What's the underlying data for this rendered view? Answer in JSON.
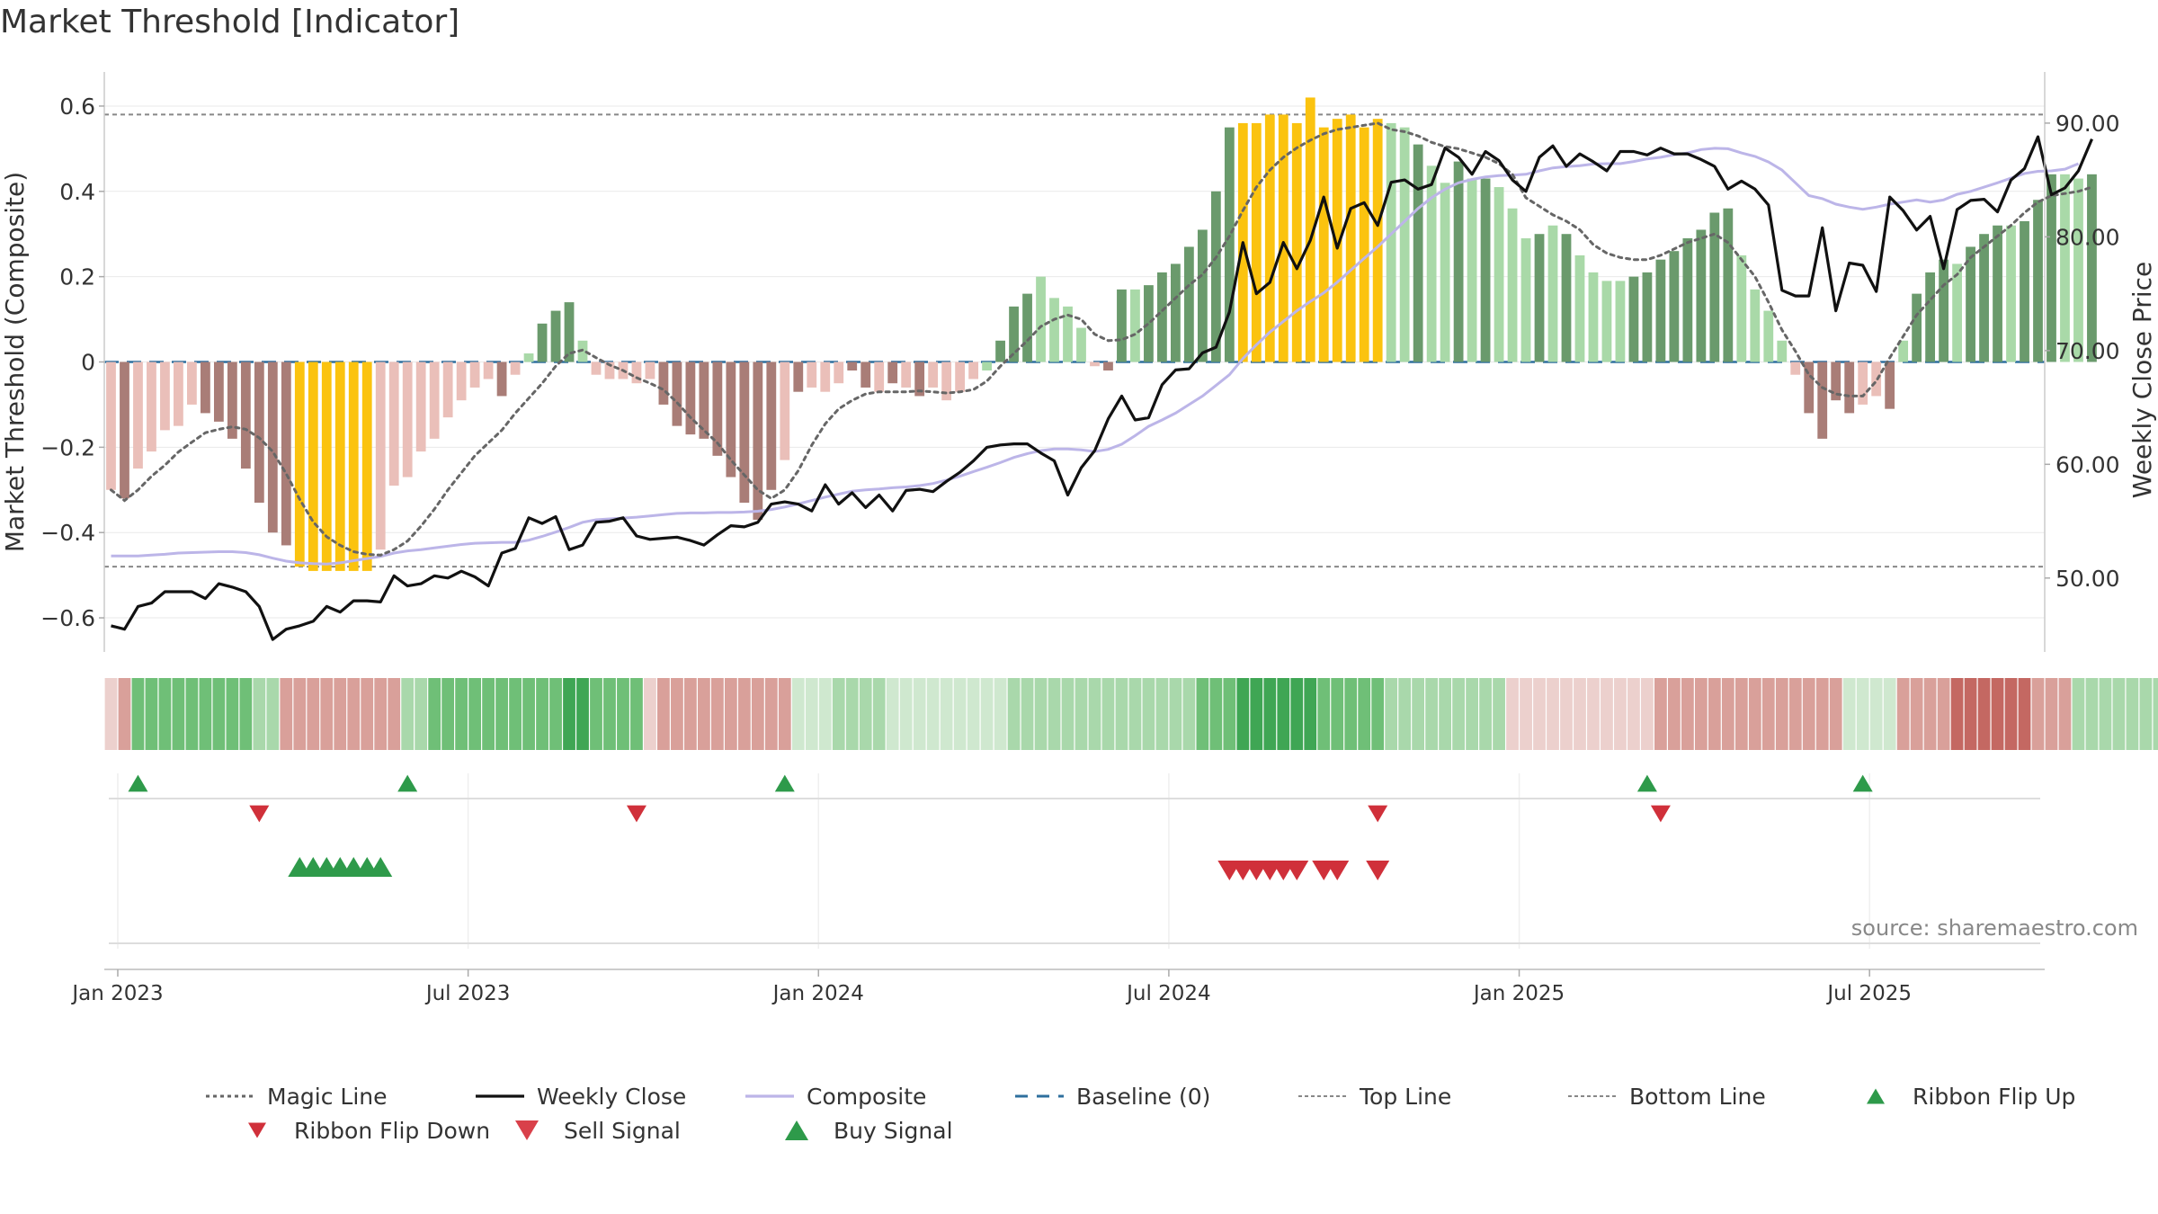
{
  "chart_data": {
    "type": "bar",
    "title": "Market Threshold [Indicator]",
    "ylabel_left": "Market Threshold (Composite)",
    "ylabel_right": "Weekly Close Price",
    "ylim_left": [
      -0.68,
      0.68
    ],
    "ylim_right": [
      43.5,
      94.5
    ],
    "yticks_left": [
      -0.6,
      -0.4,
      -0.2,
      0,
      0.2,
      0.4,
      0.6
    ],
    "yticks_left_labels": [
      "−0.6",
      "−0.4",
      "−0.2",
      "0",
      "0.2",
      "0.4",
      "0.6"
    ],
    "yticks_right": [
      50,
      60,
      70,
      80,
      90
    ],
    "yticks_right_labels": [
      "50.00",
      "60.00",
      "70.00",
      "80.00",
      "90.00"
    ],
    "x_ticks": [
      "Jan 2023",
      "Jul 2023",
      "Jan 2024",
      "Jul 2024",
      "Jan 2025",
      "Jul 2025"
    ],
    "x_tick_weeks": [
      1,
      27,
      53,
      79,
      105,
      131
    ],
    "weeks": 144,
    "top_line": 0.58,
    "bottom_line": -0.48,
    "baseline": 0,
    "composite_bars": [
      -0.3,
      -0.32,
      -0.25,
      -0.21,
      -0.16,
      -0.15,
      -0.1,
      -0.12,
      -0.14,
      -0.18,
      -0.25,
      -0.33,
      -0.4,
      -0.43,
      -0.48,
      -0.49,
      -0.49,
      -0.49,
      -0.49,
      -0.49,
      -0.44,
      -0.29,
      -0.27,
      -0.21,
      -0.18,
      -0.13,
      -0.09,
      -0.06,
      -0.04,
      -0.08,
      -0.03,
      0.02,
      0.09,
      0.12,
      0.14,
      0.05,
      -0.03,
      -0.04,
      -0.04,
      -0.05,
      -0.04,
      -0.1,
      -0.15,
      -0.17,
      -0.18,
      -0.22,
      -0.27,
      -0.33,
      -0.37,
      -0.3,
      -0.23,
      -0.07,
      -0.06,
      -0.07,
      -0.05,
      -0.02,
      -0.06,
      -0.07,
      -0.05,
      -0.06,
      -0.08,
      -0.06,
      -0.09,
      -0.07,
      -0.04,
      -0.02,
      0.05,
      0.13,
      0.16,
      0.2,
      0.15,
      0.13,
      0.08,
      -0.01,
      -0.02,
      0.17,
      0.17,
      0.18,
      0.21,
      0.23,
      0.27,
      0.31,
      0.4,
      0.55,
      0.56,
      0.56,
      0.58,
      0.58,
      0.56,
      0.62,
      0.55,
      0.57,
      0.58,
      0.55,
      0.57,
      0.56,
      0.55,
      0.51,
      0.46,
      0.42,
      0.47,
      0.43,
      0.43,
      0.41,
      0.36,
      0.29,
      0.3,
      0.32,
      0.3,
      0.25,
      0.21,
      0.19,
      0.19,
      0.2,
      0.21,
      0.24,
      0.26,
      0.29,
      0.31,
      0.35,
      0.36,
      0.25,
      0.17,
      0.12,
      0.05,
      -0.03,
      -0.12,
      -0.18,
      -0.09,
      -0.12,
      -0.1,
      -0.08,
      -0.11,
      0.05,
      0.16,
      0.21,
      0.24,
      0.23,
      0.27,
      0.3,
      0.32,
      0.32,
      0.33,
      0.38,
      0.44,
      0.44,
      0.43,
      0.44
    ],
    "bar_color_codes": [
      "ln",
      "dn",
      "ln",
      "ln",
      "ln",
      "ln",
      "ln",
      "dn",
      "dn",
      "dn",
      "dn",
      "dn",
      "dn",
      "dn",
      "y",
      "y",
      "y",
      "y",
      "y",
      "y",
      "ln",
      "ln",
      "ln",
      "ln",
      "ln",
      "ln",
      "ln",
      "ln",
      "ln",
      "dn",
      "ln",
      "lp",
      "dp",
      "dp",
      "dp",
      "lp",
      "ln",
      "ln",
      "ln",
      "ln",
      "ln",
      "dn",
      "dn",
      "dn",
      "dn",
      "dn",
      "dn",
      "dn",
      "dn",
      "dn",
      "ln",
      "dn",
      "ln",
      "ln",
      "ln",
      "dn",
      "dn",
      "ln",
      "dn",
      "ln",
      "dn",
      "ln",
      "ln",
      "ln",
      "ln",
      "lp",
      "dp",
      "dp",
      "dp",
      "lp",
      "lp",
      "lp",
      "lp",
      "ln",
      "dn",
      "dp",
      "lp",
      "dp",
      "dp",
      "dp",
      "dp",
      "dp",
      "dp",
      "dp",
      "y",
      "y",
      "y",
      "y",
      "y",
      "y",
      "y",
      "y",
      "y",
      "y",
      "y",
      "lp",
      "lp",
      "dp",
      "lp",
      "lp",
      "dp",
      "lp",
      "dp",
      "lp",
      "lp",
      "lp",
      "dp",
      "lp",
      "dp",
      "lp",
      "lp",
      "lp",
      "lp",
      "dp",
      "dp",
      "dp",
      "dp",
      "dp",
      "dp",
      "dp",
      "dp",
      "lp",
      "lp",
      "lp",
      "lp",
      "ln",
      "dn",
      "dn",
      "dn",
      "dn",
      "ln",
      "ln",
      "dn",
      "lp",
      "dp",
      "dp",
      "dp",
      "lp",
      "dp",
      "dp",
      "dp",
      "lp",
      "dp",
      "dp",
      "dp",
      "lp",
      "lp",
      "dp"
    ],
    "weekly_close": [
      45.8,
      45.5,
      47.5,
      47.8,
      48.8,
      48.8,
      48.8,
      48.2,
      49.5,
      49.2,
      48.8,
      47.5,
      44.6,
      45.5,
      45.8,
      46.2,
      47.5,
      47,
      48,
      48,
      47.9,
      50.2,
      49.3,
      49.5,
      50.2,
      50,
      50.6,
      50.1,
      49.3,
      52.2,
      52.6,
      55.3,
      54.8,
      55.4,
      52.5,
      52.9,
      54.9,
      55,
      55.3,
      53.7,
      53.4,
      53.5,
      53.6,
      53.3,
      52.9,
      53.8,
      54.6,
      54.5,
      54.9,
      56.5,
      56.7,
      56.5,
      55.9,
      58.2,
      56.5,
      57.5,
      56.2,
      57.3,
      55.9,
      57.7,
      57.8,
      57.6,
      58.5,
      59.3,
      60.3,
      61.5,
      61.7,
      61.8,
      61.8,
      61,
      60.3,
      57.3,
      59.7,
      61.2,
      64,
      66,
      63.9,
      64.1,
      67,
      68.3,
      68.4,
      69.8,
      70.3,
      73.4,
      79.5,
      75,
      76,
      79.5,
      77.2,
      79.7,
      83.5,
      79,
      82.5,
      83,
      81,
      84.8,
      85,
      84.2,
      84.6,
      87.8,
      87,
      85.5,
      87.5,
      86.7,
      85,
      84,
      87,
      88,
      86.2,
      87.3,
      86.6,
      85.8,
      87.5,
      87.5,
      87.2,
      87.8,
      87.3,
      87.3,
      86.8,
      86.2,
      84.2,
      84.9,
      84.2,
      82.8,
      75.3,
      74.8,
      74.8,
      80.8,
      73.5,
      77.7,
      77.5,
      75.2,
      83.5,
      82.3,
      80.6,
      81.8,
      77.2,
      82.4,
      83.2,
      83.3,
      82.2,
      85,
      86,
      88.8,
      83.7,
      84.3,
      85.8,
      88.6
    ],
    "composite_line": [
      -0.455,
      -0.455,
      -0.455,
      -0.453,
      -0.451,
      -0.448,
      -0.447,
      -0.446,
      -0.445,
      -0.445,
      -0.447,
      -0.452,
      -0.46,
      -0.467,
      -0.471,
      -0.473,
      -0.474,
      -0.471,
      -0.466,
      -0.461,
      -0.456,
      -0.448,
      -0.443,
      -0.44,
      -0.436,
      -0.432,
      -0.428,
      -0.425,
      -0.424,
      -0.423,
      -0.423,
      -0.418,
      -0.409,
      -0.399,
      -0.388,
      -0.376,
      -0.37,
      -0.368,
      -0.366,
      -0.364,
      -0.361,
      -0.358,
      -0.355,
      -0.354,
      -0.354,
      -0.353,
      -0.353,
      -0.352,
      -0.35,
      -0.346,
      -0.34,
      -0.333,
      -0.325,
      -0.317,
      -0.31,
      -0.303,
      -0.3,
      -0.298,
      -0.295,
      -0.293,
      -0.29,
      -0.285,
      -0.277,
      -0.268,
      -0.257,
      -0.247,
      -0.236,
      -0.224,
      -0.215,
      -0.208,
      -0.204,
      -0.204,
      -0.206,
      -0.21,
      -0.205,
      -0.193,
      -0.173,
      -0.151,
      -0.136,
      -0.12,
      -0.1,
      -0.08,
      -0.055,
      -0.03,
      0.008,
      0.04,
      0.07,
      0.095,
      0.12,
      0.142,
      0.162,
      0.187,
      0.215,
      0.243,
      0.27,
      0.3,
      0.33,
      0.36,
      0.385,
      0.405,
      0.42,
      0.428,
      0.434,
      0.437,
      0.438,
      0.44,
      0.448,
      0.455,
      0.458,
      0.46,
      0.464,
      0.465,
      0.465,
      0.47,
      0.476,
      0.48,
      0.486,
      0.49,
      0.498,
      0.501,
      0.5,
      0.49,
      0.482,
      0.469,
      0.45,
      0.42,
      0.39,
      0.383,
      0.37,
      0.363,
      0.358,
      0.363,
      0.37,
      0.375,
      0.38,
      0.375,
      0.38,
      0.393,
      0.4,
      0.41,
      0.42,
      0.431,
      0.442,
      0.447,
      0.448,
      0.452,
      0.465
    ],
    "magic_line": [
      -0.3,
      -0.325,
      -0.3,
      -0.268,
      -0.242,
      -0.211,
      -0.188,
      -0.166,
      -0.158,
      -0.152,
      -0.158,
      -0.178,
      -0.21,
      -0.262,
      -0.322,
      -0.375,
      -0.41,
      -0.43,
      -0.445,
      -0.451,
      -0.453,
      -0.44,
      -0.42,
      -0.385,
      -0.345,
      -0.3,
      -0.26,
      -0.22,
      -0.19,
      -0.16,
      -0.12,
      -0.085,
      -0.05,
      -0.01,
      0.02,
      0.028,
      0.01,
      -0.007,
      -0.02,
      -0.037,
      -0.05,
      -0.065,
      -0.095,
      -0.13,
      -0.16,
      -0.19,
      -0.23,
      -0.265,
      -0.3,
      -0.32,
      -0.3,
      -0.255,
      -0.195,
      -0.145,
      -0.11,
      -0.09,
      -0.075,
      -0.07,
      -0.07,
      -0.07,
      -0.068,
      -0.07,
      -0.073,
      -0.07,
      -0.065,
      -0.045,
      -0.01,
      0.02,
      0.05,
      0.083,
      0.1,
      0.11,
      0.1,
      0.065,
      0.05,
      0.052,
      0.065,
      0.09,
      0.12,
      0.15,
      0.18,
      0.205,
      0.245,
      0.295,
      0.355,
      0.41,
      0.45,
      0.48,
      0.502,
      0.52,
      0.535,
      0.545,
      0.55,
      0.555,
      0.56,
      0.545,
      0.54,
      0.53,
      0.515,
      0.505,
      0.5,
      0.49,
      0.48,
      0.465,
      0.44,
      0.385,
      0.365,
      0.345,
      0.33,
      0.31,
      0.275,
      0.255,
      0.245,
      0.24,
      0.24,
      0.25,
      0.265,
      0.28,
      0.29,
      0.3,
      0.28,
      0.24,
      0.2,
      0.14,
      0.075,
      0.025,
      -0.03,
      -0.06,
      -0.075,
      -0.08,
      -0.08,
      -0.045,
      0.01,
      0.06,
      0.11,
      0.145,
      0.18,
      0.205,
      0.245,
      0.27,
      0.295,
      0.32,
      0.35,
      0.375,
      0.39,
      0.395,
      0.4,
      0.41
    ],
    "ribbon_color_codes": [
      "r1",
      "r2",
      "g2",
      "g2",
      "g2",
      "g2",
      "g2",
      "g2",
      "g2",
      "g2",
      "g2",
      "g1",
      "g1",
      "r2",
      "r2",
      "r2",
      "r2",
      "r2",
      "r2",
      "r2",
      "r2",
      "r2",
      "g1",
      "g1",
      "g2",
      "g2",
      "g2",
      "g2",
      "g2",
      "g2",
      "g2",
      "g2",
      "g2",
      "g2",
      "g3",
      "g3",
      "g2",
      "g2",
      "g2",
      "g2",
      "r1",
      "r2",
      "r2",
      "r2",
      "r2",
      "r2",
      "r2",
      "r2",
      "r2",
      "r2",
      "r2",
      "g0",
      "g0",
      "g0",
      "g1",
      "g1",
      "g1",
      "g1",
      "g0",
      "g0",
      "g0",
      "g0",
      "g0",
      "g0",
      "g0",
      "g0",
      "g0",
      "g1",
      "g1",
      "g1",
      "g1",
      "g1",
      "g1",
      "g1",
      "g1",
      "g1",
      "g1",
      "g1",
      "g1",
      "g1",
      "g1",
      "g2",
      "g2",
      "g2",
      "g3",
      "g3",
      "g3",
      "g3",
      "g3",
      "g3",
      "g2",
      "g2",
      "g2",
      "g2",
      "g2",
      "g1",
      "g1",
      "g1",
      "g1",
      "g1",
      "g1",
      "g1",
      "g1",
      "g1",
      "r1",
      "r1",
      "r1",
      "r1",
      "r1",
      "r1",
      "r1",
      "r1",
      "r1",
      "r1",
      "r1",
      "r2",
      "r2",
      "r2",
      "r2",
      "r2",
      "r2",
      "r2",
      "r2",
      "r2",
      "r2",
      "r2",
      "r2",
      "r2",
      "r2",
      "g0",
      "g0",
      "g0",
      "g0",
      "r2",
      "r2",
      "r2",
      "r2",
      "r3",
      "r3",
      "r3",
      "r3",
      "r3",
      "r3",
      "r2",
      "r2",
      "r2",
      "g1",
      "g1",
      "g1",
      "g1",
      "g1",
      "g1",
      "g1",
      "g1",
      "g1",
      "g1",
      "g1",
      "g1",
      "g1",
      "g1"
    ],
    "ribbon_flip_up_weeks": [
      2,
      22,
      50,
      114,
      130
    ],
    "ribbon_flip_down_weeks": [
      11,
      39,
      94,
      115
    ],
    "buy_signal_weeks": [
      14,
      15,
      16,
      17,
      18,
      19,
      20
    ],
    "sell_signal_weeks": [
      83,
      84,
      85,
      86,
      87,
      88,
      90,
      91,
      94
    ],
    "colors": {
      "bar_dark_positive": "#6a9a6c",
      "bar_light_positive": "#a9d9a8",
      "bar_dark_negative": "#a97d77",
      "bar_light_negative": "#eabfb9",
      "bar_highlight": "#fbc30f",
      "weekly_close": "#111111",
      "composite_line": "#bcb5e8",
      "magic_line": "#666666",
      "baseline": "#2e6f9e",
      "top_bottom_line": "#888888",
      "signal_up": "#2e9a4a",
      "signal_down": "#d0303a",
      "ribbon": {
        "g0": "#cfe8cf",
        "g1": "#a9d8ab",
        "g2": "#6fbf77",
        "g3": "#3fa654",
        "r1": "#ecd0cd",
        "r2": "#d9a09a",
        "r3": "#c46862"
      }
    },
    "source_note": "source: sharemaestro.com",
    "legend": [
      {
        "label": "Magic Line",
        "symbol": "dotted-line",
        "color": "#666666"
      },
      {
        "label": "Weekly Close",
        "symbol": "solid-line",
        "color": "#111111"
      },
      {
        "label": "Composite",
        "symbol": "solid-line",
        "color": "#bcb5e8"
      },
      {
        "label": "Baseline (0)",
        "symbol": "dashed-line",
        "color": "#2e6f9e"
      },
      {
        "label": "Top Line",
        "symbol": "dotted-line-thin",
        "color": "#888888"
      },
      {
        "label": "Bottom Line",
        "symbol": "dotted-line-thin",
        "color": "#888888"
      },
      {
        "label": "Ribbon Flip Up",
        "symbol": "triangle-up-small",
        "color": "#2e9a4a"
      },
      {
        "label": "Ribbon Flip Down",
        "symbol": "triangle-down-small",
        "color": "#d0303a"
      },
      {
        "label": "Sell Signal",
        "symbol": "triangle-down",
        "color": "#d9404a"
      },
      {
        "label": "Buy Signal",
        "symbol": "triangle-up",
        "color": "#2e9a4a"
      }
    ]
  }
}
